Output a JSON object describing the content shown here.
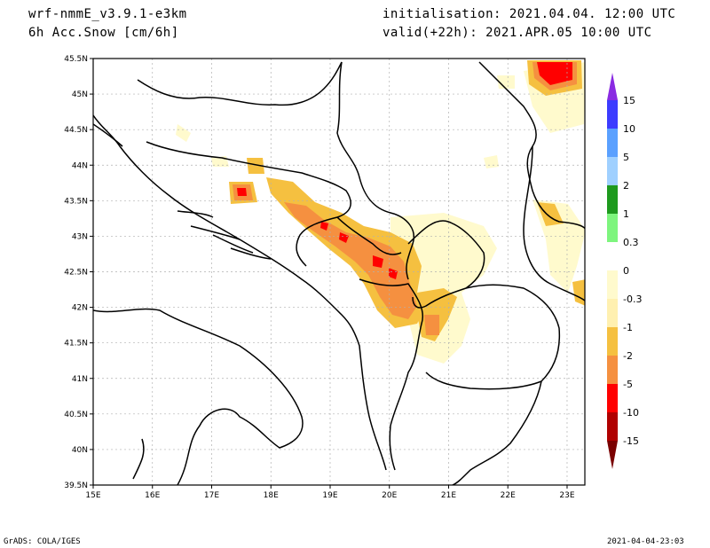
{
  "header": {
    "model": "wrf-nmmE_v3.9.1-e3km",
    "variable": "6h Acc.Snow [cm/6h]",
    "initialisation": "initialisation: 2021.04.04.  12:00 UTC",
    "valid": "valid(+22h): 2021.APR.05 10:00 UTC"
  },
  "footer": {
    "credit": "GrADS: COLA/IGES",
    "timestamp": "2021-04-04-23:03"
  },
  "map": {
    "lon_range": [
      15,
      23.3
    ],
    "lat_range": [
      39.5,
      45.5
    ],
    "lon_ticks": [
      "15E",
      "16E",
      "17E",
      "18E",
      "19E",
      "20E",
      "21E",
      "22E",
      "23E"
    ],
    "lat_ticks": [
      "45.5N",
      "45N",
      "44.5N",
      "44N",
      "43.5N",
      "43N",
      "42.5N",
      "42N",
      "41.5N",
      "41N",
      "40.5N",
      "40N",
      "39.5N"
    ],
    "snow_areas": [
      {
        "lon": 22.8,
        "lat": 45.3,
        "level": "-10"
      },
      {
        "lon": 17.5,
        "lat": 43.6,
        "level": "-5"
      },
      {
        "lon": 19.4,
        "lat": 43.0,
        "level": "-5"
      },
      {
        "lon": 19.8,
        "lat": 42.45,
        "level": "-5"
      },
      {
        "lon": 20.0,
        "lat": 42.1,
        "level": "-5"
      }
    ]
  },
  "colorbar": {
    "levels": [
      {
        "label": "15",
        "color": "#8a2be2"
      },
      {
        "label": "10",
        "color": "#3c3cff"
      },
      {
        "label": "5",
        "color": "#5aa0ff"
      },
      {
        "label": "2",
        "color": "#9fd0ff"
      },
      {
        "label": "1",
        "color": "#1e9a1e"
      },
      {
        "label": "0.3",
        "color": "#7ef57e"
      },
      {
        "label": "0",
        "color": "#ffffff"
      },
      {
        "label": "-0.3",
        "color": "#fffacd"
      },
      {
        "label": "-1",
        "color": "#fff0b0"
      },
      {
        "label": "-2",
        "color": "#f5c040"
      },
      {
        "label": "-5",
        "color": "#f59040"
      },
      {
        "label": "-10",
        "color": "#ff0000"
      },
      {
        "label": "-15",
        "color": "#b00000"
      }
    ],
    "bottom_color": "#7a0000"
  }
}
